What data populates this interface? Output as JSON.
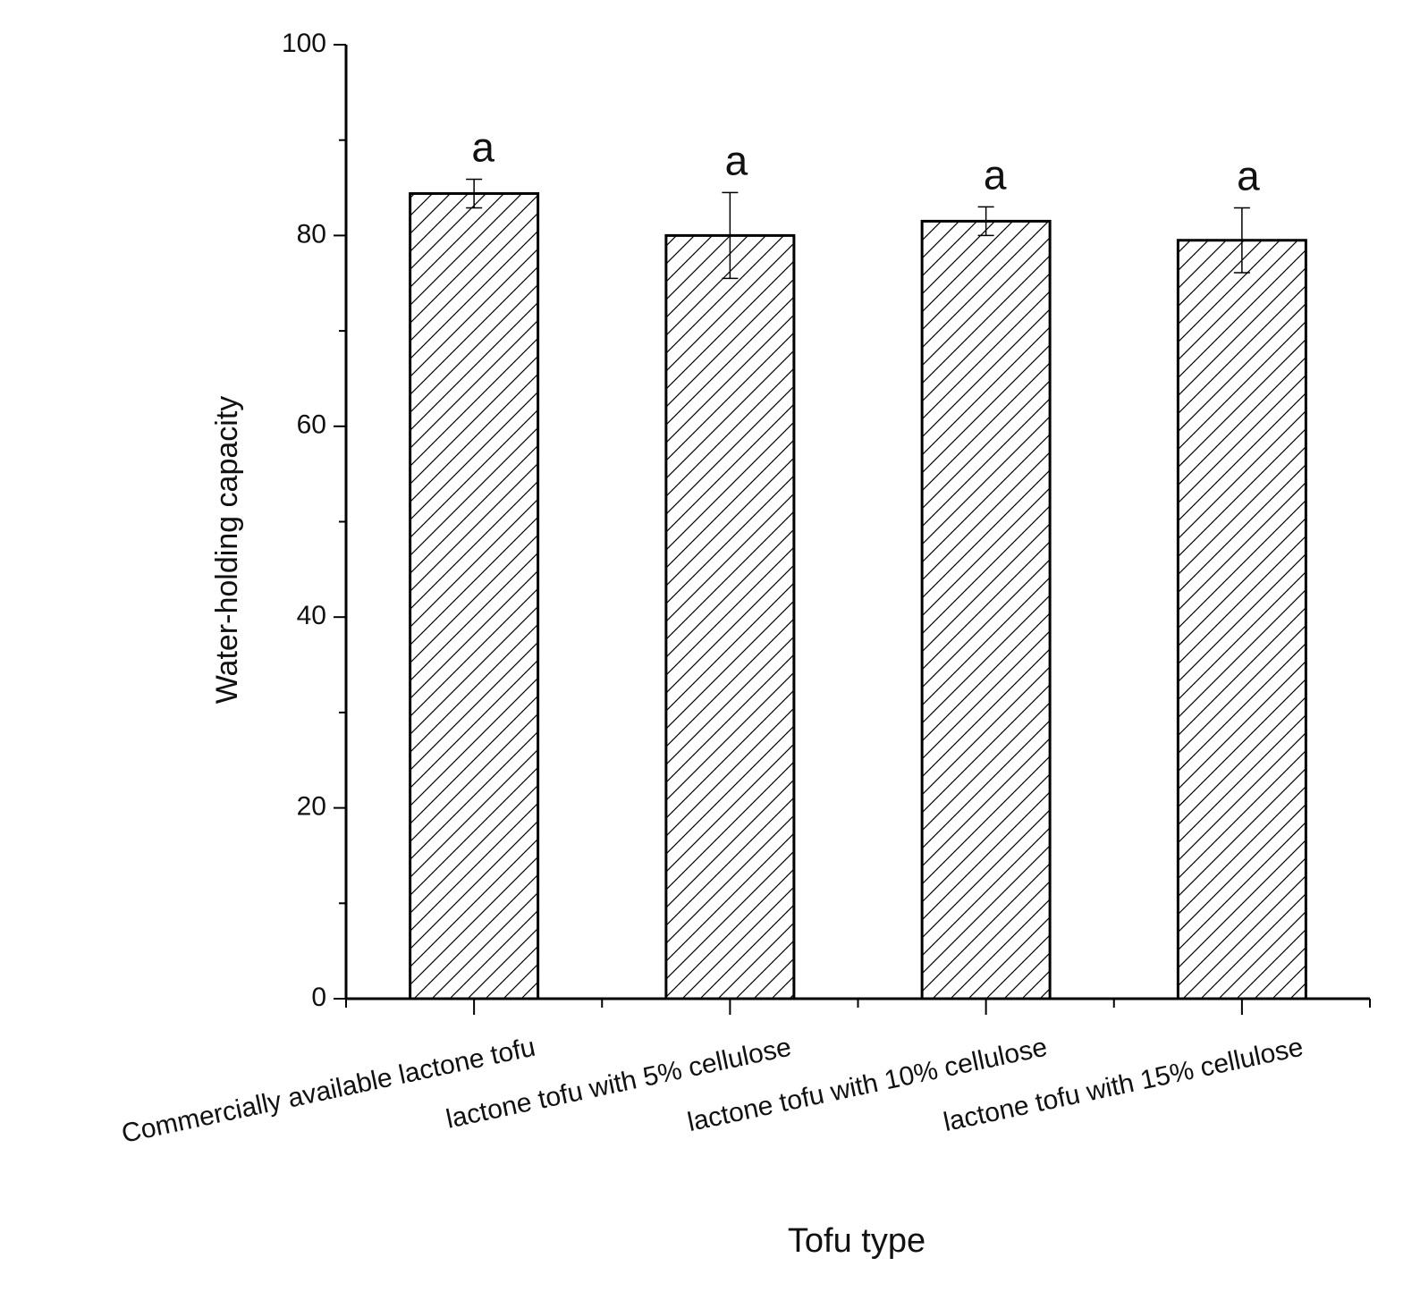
{
  "chart_data": {
    "type": "bar",
    "x_label": "Tofu type",
    "y_label": "Water-holding capacity",
    "categories": [
      "Commercially available lactone tofu",
      "lactone tofu with 5% cellulose",
      "lactone tofu with 10% cellulose",
      "lactone tofu with 15% cellulose"
    ],
    "values": [
      84.4,
      80.0,
      81.5,
      79.5
    ],
    "errors": [
      1.5,
      4.5,
      1.5,
      3.4
    ],
    "annotations": [
      "a",
      "a",
      "a",
      "a"
    ],
    "color": "#ffffff",
    "edgecolor": "#000000",
    "hatch": "/",
    "ylim": [
      0,
      100
    ],
    "yticks": [
      0,
      20,
      40,
      60,
      80,
      100
    ],
    "minor_yticks": [
      10,
      30,
      50,
      70,
      90
    ],
    "grid": false
  }
}
